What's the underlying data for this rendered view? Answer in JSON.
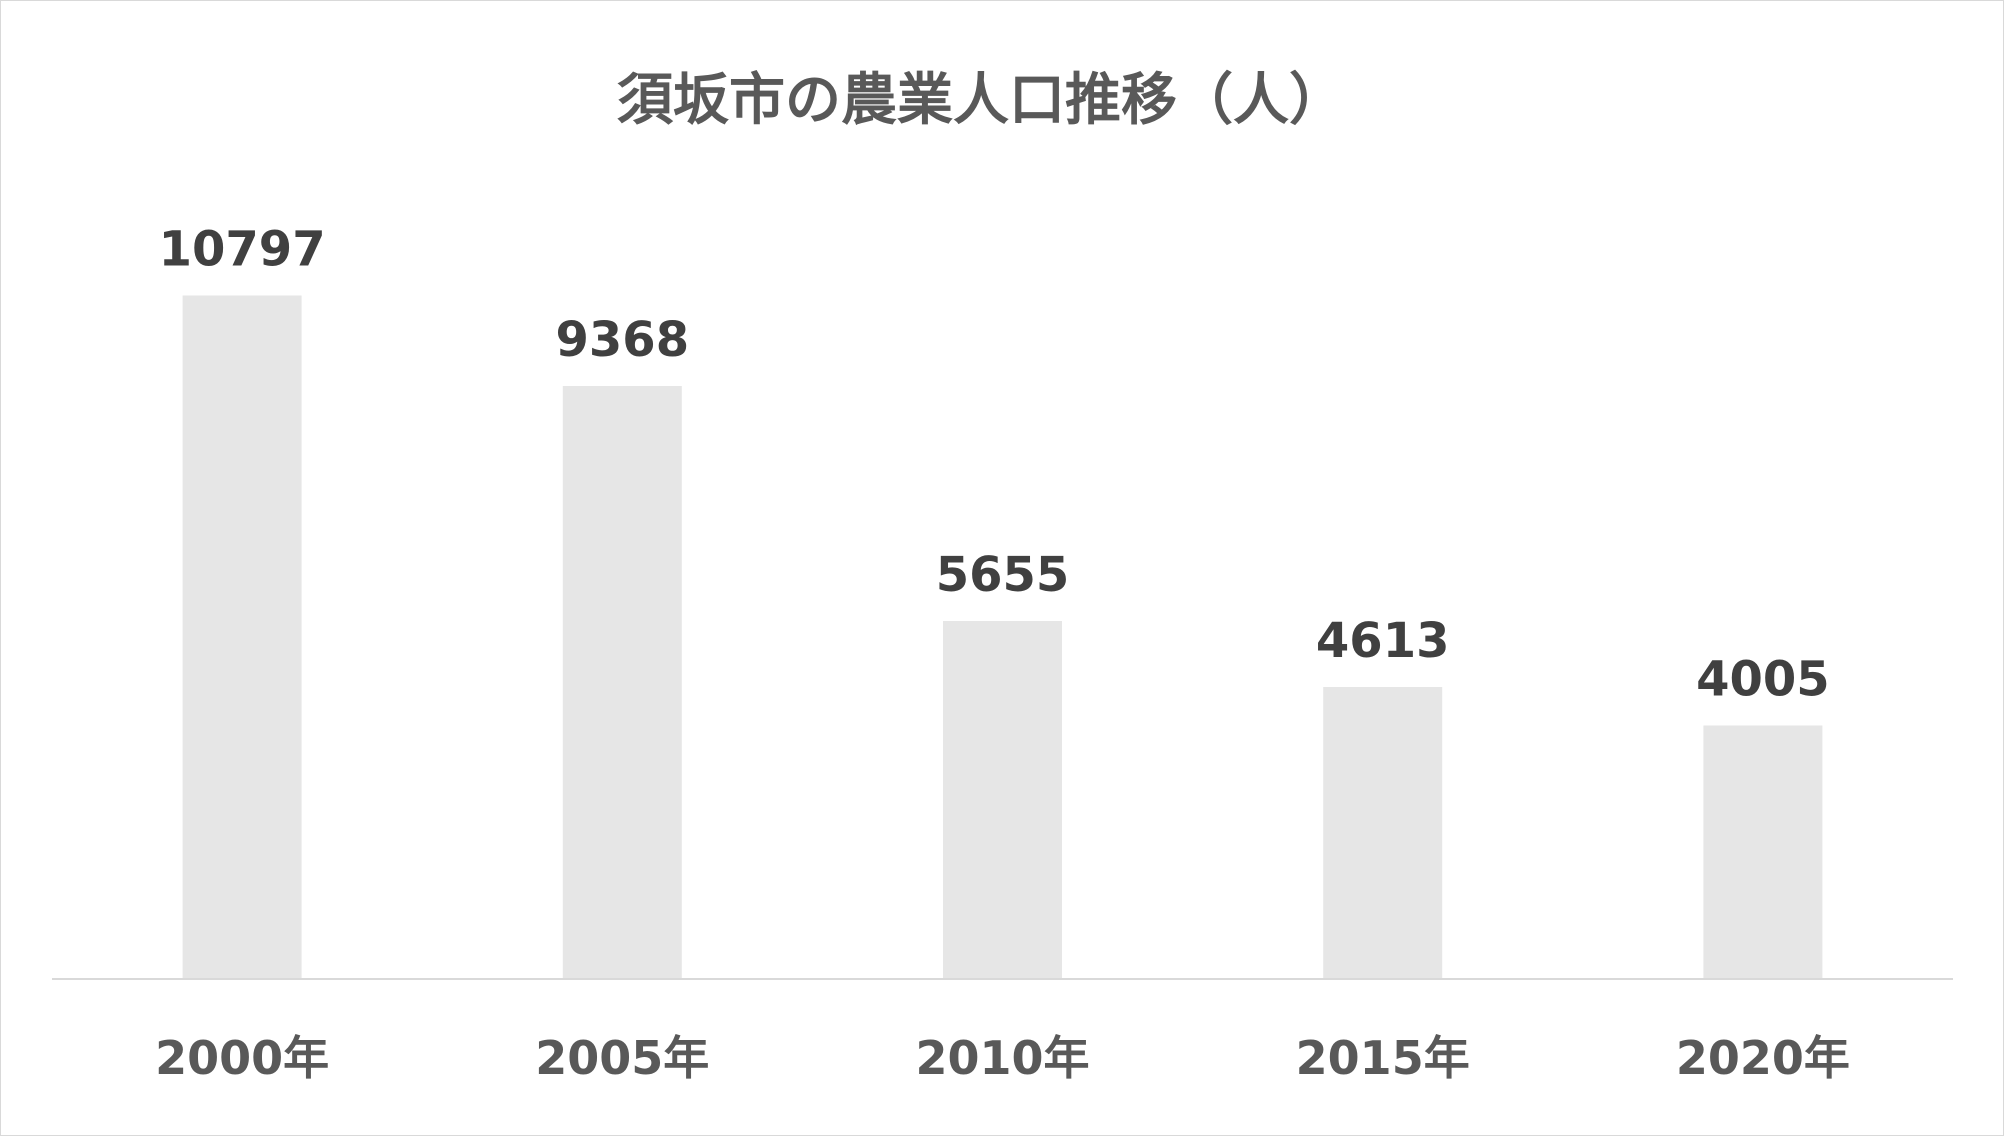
{
  "chart_data": {
    "type": "bar",
    "title": "須坂市の農業人口推移（人）",
    "categories": [
      "2000年",
      "2005年",
      "2010年",
      "2015年",
      "2020年"
    ],
    "values": [
      10797,
      9368,
      5655,
      4613,
      4005
    ],
    "xlabel": "",
    "ylabel": "",
    "ylim": [
      0,
      12000
    ],
    "grid": false,
    "legend": "none",
    "bar_color": "#e6e6e6",
    "axis_color": "#d9d9d9"
  }
}
